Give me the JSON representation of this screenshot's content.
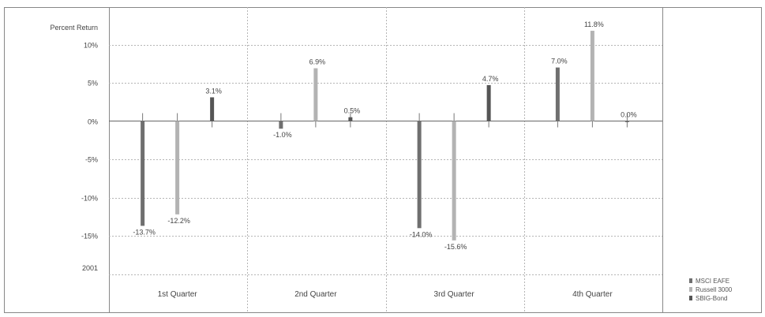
{
  "chart_data": {
    "type": "bar",
    "ylabel": "Percent Return",
    "period_label": "2001",
    "categories": [
      "1st Quarter",
      "2nd Quarter",
      "3rd Quarter",
      "4th Quarter"
    ],
    "ylim": [
      -20,
      15
    ],
    "yticks": [
      10,
      5,
      0,
      -5,
      -10,
      -15
    ],
    "ytick_labels": [
      "10%",
      "5%",
      "0%",
      "-5%",
      "-10%",
      "-15%"
    ],
    "grid": true,
    "legend_position": "bottom-right",
    "series": [
      {
        "name": "MSCI EAFE",
        "color": "#6f6f6f",
        "values": [
          -13.7,
          -1.0,
          -14.0,
          7.0
        ],
        "labels": [
          "-13.7%",
          "-1.0%",
          "-14.0%",
          "7.0%"
        ]
      },
      {
        "name": "Russell 3000",
        "color": "#b3b3b3",
        "values": [
          -12.2,
          6.9,
          -15.6,
          11.8
        ],
        "labels": [
          "-12.2%",
          "6.9%",
          "-15.6%",
          "11.8%"
        ]
      },
      {
        "name": "SBIG-Bond",
        "color": "#555555",
        "values": [
          3.1,
          0.5,
          4.7,
          0.0
        ],
        "labels": [
          "3.1%",
          "0.5%",
          "4.7%",
          "0.0%"
        ]
      }
    ]
  }
}
